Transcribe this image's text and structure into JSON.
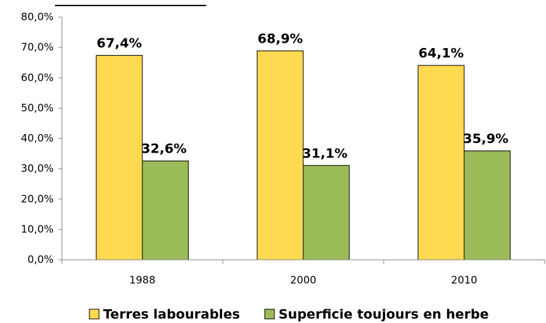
{
  "chart_data": {
    "type": "bar",
    "categories": [
      "1988",
      "2000",
      "2010"
    ],
    "series": [
      {
        "name": "Terres labourables",
        "color": "#ffd94f",
        "values": [
          67.4,
          68.9,
          64.1
        ],
        "value_labels": [
          "67,4%",
          "68,9%",
          "64,1%"
        ]
      },
      {
        "name": "Superficie toujours en herbe",
        "color": "#9bbb59",
        "values": [
          32.6,
          31.1,
          35.9
        ],
        "value_labels": [
          "32,6%",
          "31,1%",
          "35,9%"
        ]
      }
    ],
    "ylim": [
      0,
      80
    ],
    "yticks": [
      {
        "value": 0,
        "label": "0,0%"
      },
      {
        "value": 10,
        "label": "10,0%"
      },
      {
        "value": 20,
        "label": "20,0%"
      },
      {
        "value": 30,
        "label": "30,0%"
      },
      {
        "value": 40,
        "label": "40,0%"
      },
      {
        "value": 50,
        "label": "50,0%"
      },
      {
        "value": 60,
        "label": "60,0%"
      },
      {
        "value": 70,
        "label": "70,0%"
      },
      {
        "value": 80,
        "label": "80,0%"
      }
    ],
    "legend": "bottom"
  }
}
